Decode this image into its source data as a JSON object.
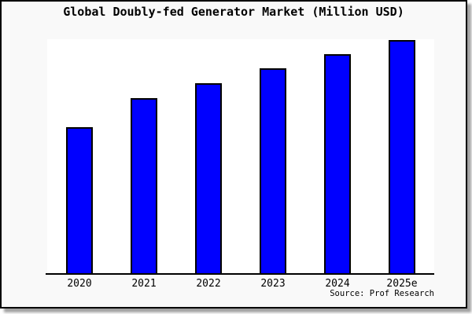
{
  "frame": {
    "background": "#f9f9f9",
    "border_color": "#000000",
    "shadow": "gray drop shadow bottom-right"
  },
  "chart_data": {
    "type": "bar",
    "title": "Global Doubly-fed Generator Market (Million USD)",
    "categories": [
      "2020",
      "2021",
      "2022",
      "2023",
      "2024",
      "2025e"
    ],
    "series": [
      {
        "name": "Market size (Million USD, scale unlabeled)",
        "values_pct_of_max": [
          62.6,
          75.1,
          81.5,
          87.9,
          93.9,
          100
        ]
      }
    ],
    "bar_heights_pct_of_plot": [
      62.4,
      74.8,
      81.2,
      87.6,
      93.6,
      99.7
    ],
    "bar_color": "#0000ff",
    "bar_border_color": "#000000",
    "plot_background": "#ffffff",
    "xlabel": "",
    "ylabel": "",
    "y_axis_ticks": "none (unlabeled axis, no gridlines)",
    "legend_position": "none",
    "source_note": "Source: Prof Research"
  }
}
